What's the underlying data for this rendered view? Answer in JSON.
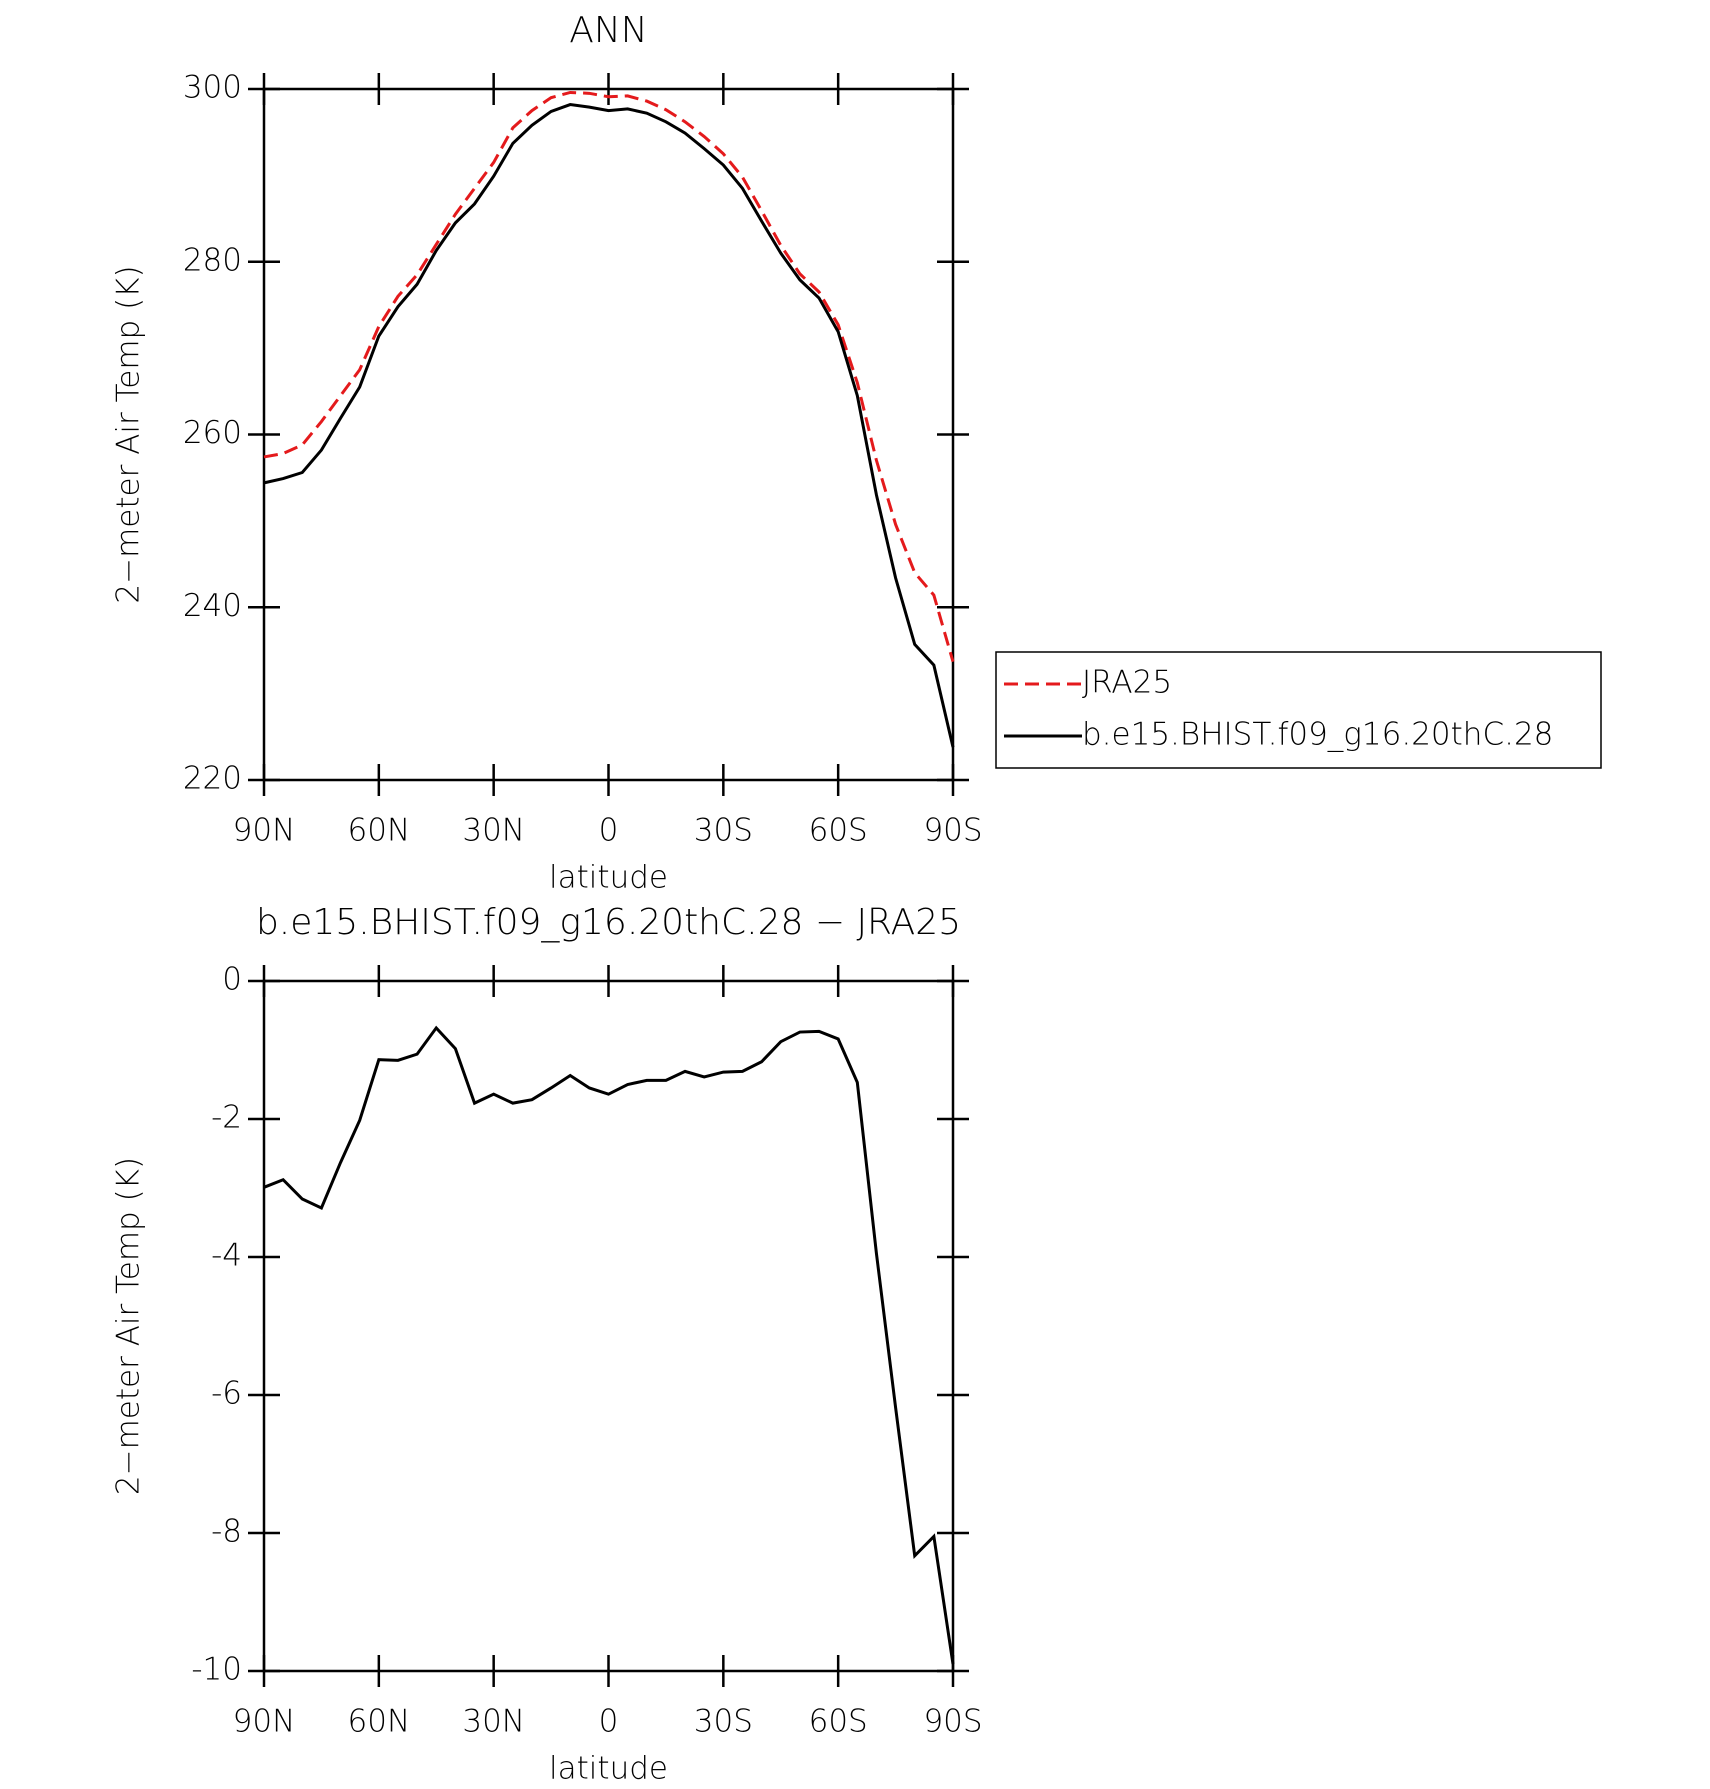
{
  "chart_data": [
    {
      "type": "line",
      "title": "ANN",
      "x_label": "latitude",
      "y_label": "2−meter Air Temp (K)",
      "x": [
        90,
        85,
        80,
        75,
        70,
        65,
        60,
        55,
        50,
        45,
        40,
        35,
        30,
        25,
        20,
        15,
        10,
        5,
        0,
        -5,
        -10,
        -15,
        -20,
        -25,
        -30,
        -35,
        -40,
        -45,
        -50,
        -55,
        -60,
        -65,
        -70,
        -75,
        -80,
        -85,
        -90
      ],
      "series": [
        {
          "name": "JRA25",
          "color": "#e41a1c",
          "line_style": "dashed",
          "values": [
            257.4,
            257.8,
            258.8,
            261.5,
            264.5,
            267.5,
            272.5,
            276,
            278.5,
            282,
            285.5,
            288.5,
            291.5,
            295.5,
            297.5,
            299,
            299.6,
            299.5,
            299.1,
            299.2,
            298.6,
            297.6,
            296.2,
            294.5,
            292.5,
            289.8,
            285.9,
            281.9,
            278.6,
            276.5,
            272.7,
            266,
            257,
            249.6,
            244,
            241.4,
            233.7
          ]
        },
        {
          "name": "b.e15.BHIST.f09_g16.20thC.28",
          "color": "#000000",
          "line_style": "solid",
          "values": [
            254.4,
            254.9,
            255.6,
            258.2,
            261.9,
            265.5,
            271.4,
            274.8,
            277.4,
            281.3,
            284.5,
            286.7,
            289.9,
            293.7,
            295.8,
            297.4,
            298.2,
            297.9,
            297.5,
            297.7,
            297.2,
            296.2,
            294.9,
            293.1,
            291.2,
            288.5,
            284.7,
            281.0,
            277.9,
            275.8,
            271.9,
            264.5,
            253.0,
            243.4,
            235.7,
            233.3,
            223.8
          ]
        }
      ],
      "xlim": [
        90,
        -90
      ],
      "xticks": [
        {
          "value": 90,
          "label": "90N"
        },
        {
          "value": 60,
          "label": "60N"
        },
        {
          "value": 30,
          "label": "30N"
        },
        0,
        {
          "value": -30,
          "label": "30S"
        },
        {
          "value": -60,
          "label": "60S"
        },
        {
          "value": -90,
          "label": "90S"
        }
      ],
      "ylim": [
        220,
        300
      ],
      "yticks": [
        220,
        240,
        260,
        280,
        300
      ],
      "legend": "right"
    },
    {
      "type": "line",
      "title": "b.e15.BHIST.f09_g16.20thC.28 − JRA25",
      "x_label": "latitude",
      "y_label": "2−meter Air Temp (K)",
      "x": [
        90,
        85,
        80,
        75,
        70,
        65,
        60,
        55,
        50,
        45,
        40,
        35,
        30,
        25,
        20,
        15,
        10,
        5,
        0,
        -5,
        -10,
        -15,
        -20,
        -25,
        -30,
        -35,
        -40,
        -45,
        -50,
        -55,
        -60,
        -65,
        -70,
        -75,
        -80,
        -85,
        -90
      ],
      "series": [
        {
          "color": "#000000",
          "line_style": "solid",
          "values": [
            -2.99,
            -2.88,
            -3.16,
            -3.29,
            -2.63,
            -2.02,
            -1.14,
            -1.15,
            -1.06,
            -0.68,
            -0.98,
            -1.77,
            -1.64,
            -1.77,
            -1.72,
            -1.55,
            -1.37,
            -1.55,
            -1.64,
            -1.5,
            -1.44,
            -1.44,
            -1.31,
            -1.39,
            -1.32,
            -1.31,
            -1.17,
            -0.88,
            -0.74,
            -0.73,
            -0.84,
            -1.47,
            -3.95,
            -6.18,
            -8.33,
            -8.05,
            -9.9
          ]
        }
      ],
      "xlim": [
        90,
        -90
      ],
      "xticks": [
        {
          "value": 90,
          "label": "90N"
        },
        {
          "value": 60,
          "label": "60N"
        },
        {
          "value": 30,
          "label": "30N"
        },
        0,
        {
          "value": -30,
          "label": "30S"
        },
        {
          "value": -60,
          "label": "60S"
        },
        {
          "value": -90,
          "label": "90S"
        }
      ],
      "ylim": [
        -10,
        0
      ],
      "yticks": [
        -10,
        -8,
        -6,
        -4,
        -2,
        0
      ]
    }
  ]
}
